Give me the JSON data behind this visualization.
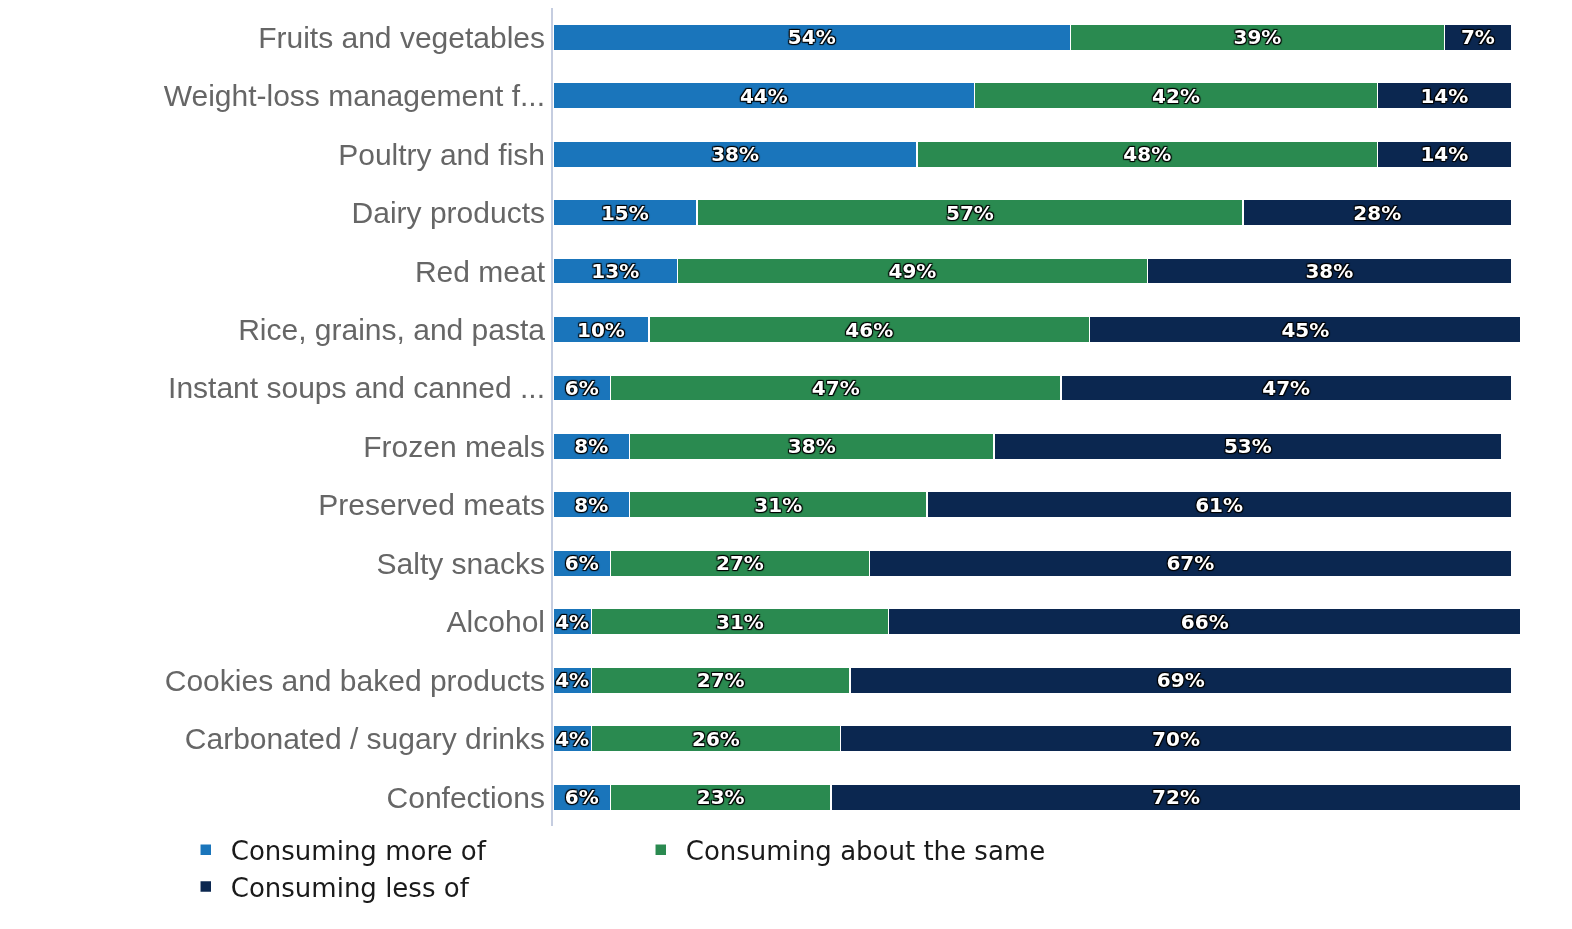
{
  "chart_data": {
    "type": "bar",
    "orientation": "horizontal",
    "stacked": true,
    "legend": "bottom",
    "grid": false,
    "tick_labels": "y",
    "categories": [
      "Fruits and vegetables",
      "Weight-loss management f...",
      "Poultry and fish",
      "Dairy products",
      "Red meat",
      "Rice, grains, and pasta",
      "Instant soups and canned ...",
      "Frozen meals",
      "Preserved meats",
      "Salty snacks",
      "Alcohol",
      "Cookies and baked products",
      "Carbonated / sugary drinks",
      "Confections"
    ],
    "series": [
      {
        "name": "Consuming more of",
        "color": "#1a75bb",
        "values": [
          54,
          44,
          38,
          15,
          13,
          10,
          6,
          8,
          8,
          6,
          4,
          4,
          4,
          6
        ],
        "value_labels": [
          "54%",
          "44%",
          "38%",
          "15%",
          "13%",
          "10%",
          "6%",
          "8%",
          "8%",
          "6%",
          "4%",
          "4%",
          "4%",
          "6%"
        ]
      },
      {
        "name": "Consuming about the same",
        "color": "#2a8a50",
        "values": [
          39,
          42,
          48,
          57,
          49,
          46,
          47,
          38,
          31,
          27,
          31,
          27,
          26,
          23
        ],
        "value_labels": [
          "39%",
          "42%",
          "48%",
          "57%",
          "49%",
          "46%",
          "47%",
          "38%",
          "31%",
          "27%",
          "31%",
          "27%",
          "26%",
          "23%"
        ]
      },
      {
        "name": "Consuming less of",
        "color": "#0b2750",
        "values": [
          7,
          14,
          14,
          28,
          38,
          45,
          47,
          53,
          61,
          67,
          66,
          69,
          70,
          72
        ],
        "value_labels": [
          "7%",
          "14%",
          "14%",
          "28%",
          "38%",
          "45%",
          "47%",
          "53%",
          "61%",
          "67%",
          "66%",
          "69%",
          "70%",
          "72%"
        ]
      }
    ]
  }
}
